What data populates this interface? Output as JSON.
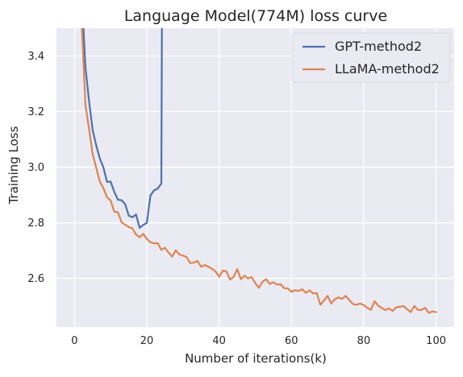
{
  "chart_data": {
    "type": "line",
    "title": "Language Model(774M) loss curve",
    "xlabel": "Number of iterations(k)",
    "ylabel": "Training Loss",
    "xlim": [
      -5,
      105
    ],
    "ylim": [
      2.425,
      3.5
    ],
    "x_ticks": [
      0,
      20,
      40,
      60,
      80,
      100
    ],
    "y_ticks": [
      2.6,
      2.8,
      3.0,
      3.2,
      3.4
    ],
    "x_tick_labels": [
      "0",
      "20",
      "40",
      "60",
      "80",
      "100"
    ],
    "y_tick_labels": [
      "2.6",
      "2.8",
      "3.0",
      "3.2",
      "3.4"
    ],
    "grid": true,
    "background": "#eaeaf2",
    "legend_position": "upper right",
    "series": [
      {
        "name": "GPT-method2",
        "color": "#4c72b0",
        "x": [
          2,
          3,
          4,
          5,
          6,
          7,
          8,
          9,
          10,
          11,
          12,
          13,
          14,
          15,
          16,
          17,
          18,
          19,
          20,
          21,
          22,
          23,
          24,
          24.2
        ],
        "y": [
          3.62,
          3.36,
          3.24,
          3.135,
          3.078,
          3.031,
          2.998,
          2.947,
          2.948,
          2.911,
          2.883,
          2.881,
          2.867,
          2.826,
          2.82,
          2.83,
          2.782,
          2.792,
          2.8,
          2.898,
          2.917,
          2.923,
          2.941,
          3.62
        ]
      },
      {
        "name": "LLaMA-method2",
        "color": "#dd8452",
        "x": [
          1.7,
          3,
          4,
          5,
          6,
          7,
          8,
          9,
          10,
          11,
          12,
          13,
          14,
          15,
          16,
          17,
          18,
          19,
          20,
          21,
          22,
          23,
          24,
          25,
          26,
          27,
          28,
          29,
          30,
          31,
          32,
          33,
          34,
          35,
          36,
          37,
          38,
          39,
          40,
          41,
          42,
          43,
          44,
          45,
          46,
          47,
          48,
          49,
          50,
          51,
          52,
          53,
          54,
          55,
          56,
          57,
          58,
          59,
          60,
          61,
          62,
          63,
          64,
          65,
          66,
          67,
          68,
          69,
          70,
          71,
          72,
          73,
          74,
          75,
          76,
          77,
          78,
          79,
          80,
          81,
          82,
          83,
          84,
          85,
          86,
          87,
          88,
          89,
          90,
          91,
          92,
          93,
          94,
          95,
          96,
          97,
          98,
          99,
          100
        ],
        "y": [
          3.6,
          3.225,
          3.14,
          3.048,
          2.998,
          2.948,
          2.924,
          2.892,
          2.88,
          2.84,
          2.838,
          2.802,
          2.793,
          2.785,
          2.78,
          2.758,
          2.748,
          2.76,
          2.742,
          2.73,
          2.726,
          2.727,
          2.703,
          2.71,
          2.693,
          2.678,
          2.701,
          2.686,
          2.682,
          2.677,
          2.655,
          2.657,
          2.663,
          2.642,
          2.648,
          2.642,
          2.635,
          2.625,
          2.606,
          2.628,
          2.626,
          2.596,
          2.605,
          2.633,
          2.597,
          2.61,
          2.6,
          2.605,
          2.583,
          2.566,
          2.588,
          2.597,
          2.58,
          2.586,
          2.578,
          2.579,
          2.565,
          2.564,
          2.552,
          2.557,
          2.555,
          2.561,
          2.548,
          2.557,
          2.546,
          2.547,
          2.505,
          2.521,
          2.537,
          2.51,
          2.525,
          2.532,
          2.526,
          2.537,
          2.522,
          2.508,
          2.505,
          2.51,
          2.504,
          2.494,
          2.487,
          2.518,
          2.502,
          2.493,
          2.486,
          2.492,
          2.483,
          2.496,
          2.498,
          2.501,
          2.489,
          2.479,
          2.501,
          2.486,
          2.487,
          2.494,
          2.476,
          2.481,
          2.479
        ]
      }
    ]
  }
}
